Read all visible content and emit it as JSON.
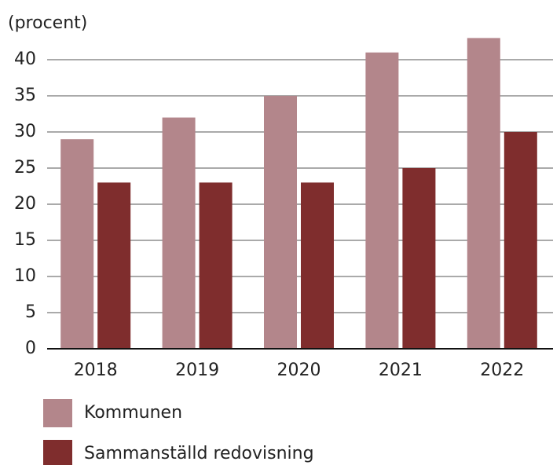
{
  "chart_data": {
    "type": "bar",
    "y_label": "(procent)",
    "categories": [
      "2018",
      "2019",
      "2020",
      "2021",
      "2022"
    ],
    "series": [
      {
        "name": "Kommunen",
        "color": "#b3868b",
        "values": [
          29,
          32,
          35,
          41,
          43
        ]
      },
      {
        "name": "Sammanställd redovisning",
        "color": "#7f2d2d",
        "values": [
          23,
          23,
          23,
          25,
          30
        ]
      }
    ],
    "ylim": [
      0,
      44
    ],
    "yticks": [
      0,
      5,
      10,
      15,
      20,
      25,
      30,
      35,
      40
    ],
    "grid": true
  }
}
